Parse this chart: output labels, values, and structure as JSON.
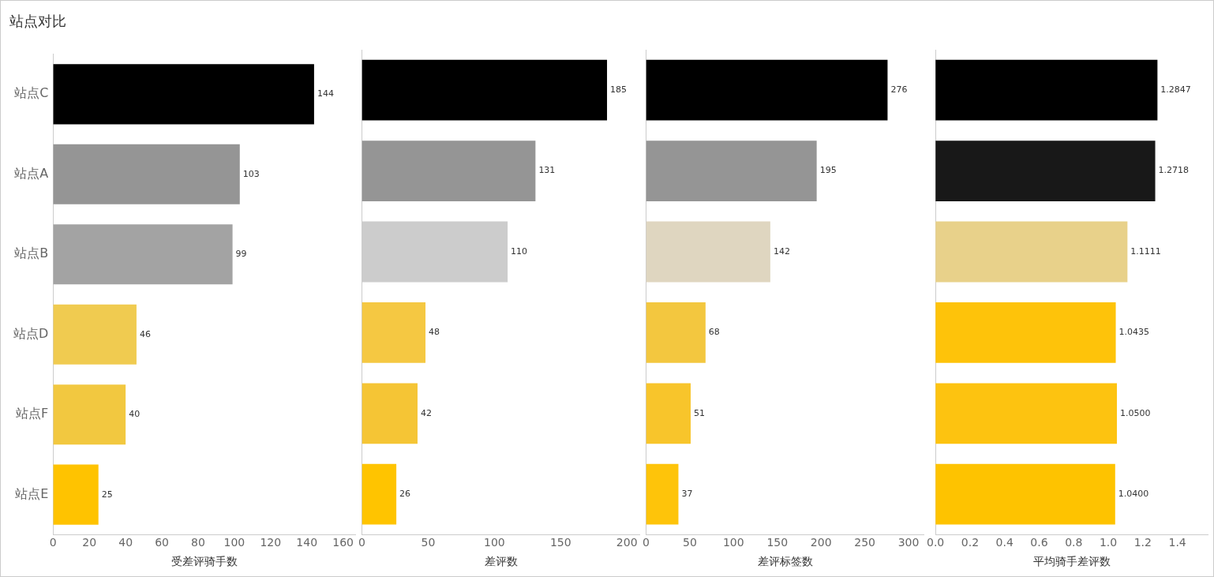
{
  "chart_data": [
    {
      "type": "bar",
      "orientation": "horizontal",
      "title": "站点对比",
      "xlabel": "受差评骑手数",
      "categories": [
        "站点C",
        "站点A",
        "站点B",
        "站点D",
        "站点F",
        "站点E"
      ],
      "values": [
        144,
        103,
        99,
        46,
        40,
        25
      ],
      "colors": [
        "#000000",
        "#959595",
        "#a3a3a3",
        "#f0cb50",
        "#f2c840",
        "#ffc300"
      ],
      "xlim": [
        0,
        167
      ],
      "xticks": [
        0,
        20,
        40,
        60,
        80,
        100,
        120,
        140,
        160
      ],
      "data_labels": true,
      "grid": false,
      "legend": false
    },
    {
      "type": "bar",
      "orientation": "horizontal",
      "xlabel": "差评数",
      "categories": [
        null,
        null,
        null,
        null,
        null,
        null
      ],
      "values": [
        185,
        131,
        110,
        48,
        42,
        26
      ],
      "colors": [
        "#000000",
        "#959595",
        "#cccccc",
        "#f5c842",
        "#f5c535",
        "#ffc400"
      ],
      "xlim": [
        0,
        210
      ],
      "xticks": [
        0,
        50,
        100,
        150,
        200
      ],
      "data_labels": true,
      "tick_labels": "x",
      "grid": false,
      "legend": false
    },
    {
      "type": "bar",
      "orientation": "horizontal",
      "xlabel": "差评标签数",
      "categories": [
        null,
        null,
        null,
        null,
        null,
        null
      ],
      "values": [
        276,
        195,
        142,
        68,
        51,
        37
      ],
      "colors": [
        "#000000",
        "#959595",
        "#dfd6c0",
        "#f3c73f",
        "#f8c52b",
        "#fec40a"
      ],
      "xlim": [
        0,
        318
      ],
      "xticks": [
        0,
        50,
        100,
        150,
        200,
        250,
        300
      ],
      "data_labels": true,
      "tick_labels": "x",
      "grid": false,
      "legend": false
    },
    {
      "type": "bar",
      "orientation": "horizontal",
      "xlabel": "平均骑手差评数",
      "categories": [
        null,
        null,
        null,
        null,
        null,
        null
      ],
      "values": [
        1.2847,
        1.2718,
        1.1111,
        1.0435,
        1.05,
        1.04
      ],
      "value_labels": [
        "1.2847",
        "1.2718",
        "1.1111",
        "1.0435",
        "1.0500",
        "1.0400"
      ],
      "colors": [
        "#000000",
        "#181818",
        "#e8d18a",
        "#fec30a",
        "#fdc310",
        "#fec300"
      ],
      "xlim": [
        0,
        1.58
      ],
      "xticks": [
        {
          "value": 0,
          "label": "0.0"
        },
        0.2,
        0.4,
        0.6,
        0.8,
        {
          "value": 1,
          "label": "1.0"
        },
        1.2,
        1.4
      ],
      "tick_labels": "x",
      "grid": false,
      "legend": false
    }
  ]
}
